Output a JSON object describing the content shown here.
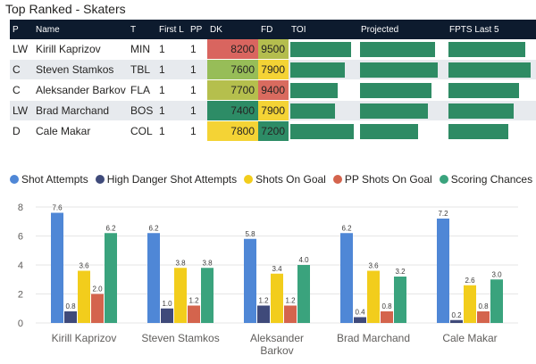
{
  "title": "Top Ranked - Skaters",
  "table": {
    "headers": {
      "pos": "P",
      "name": "Name",
      "team": "T",
      "firstl": "First L",
      "pp": "PP",
      "dk": "DK",
      "fd": "FD",
      "toi": "TOI",
      "projected": "Projected",
      "fpts": "FPTS Last 5"
    },
    "rows": [
      {
        "pos": "LW",
        "name": "Kirill Kaprizov",
        "team": "MIN",
        "firstl": "1",
        "pp": "1",
        "dk": "8200",
        "fd": "9500",
        "dk_color": "#d9655f",
        "fd_color": "#b4bd4e",
        "toi": 0.92,
        "projected": 0.88,
        "fpts": 0.9
      },
      {
        "pos": "C",
        "name": "Steven Stamkos",
        "team": "TBL",
        "firstl": "1",
        "pp": "1",
        "dk": "7600",
        "fd": "7900",
        "dk_color": "#97bd58",
        "fd_color": "#f4d335",
        "toi": 0.82,
        "projected": 0.92,
        "fpts": 0.96
      },
      {
        "pos": "C",
        "name": "Aleksander Barkov",
        "team": "FLA",
        "firstl": "1",
        "pp": "1",
        "dk": "7700",
        "fd": "9400",
        "dk_color": "#b5bf4d",
        "fd_color": "#d96b5f",
        "toi": 0.72,
        "projected": 0.84,
        "fpts": 0.82
      },
      {
        "pos": "LW",
        "name": "Brad Marchand",
        "team": "BOS",
        "firstl": "1",
        "pp": "1",
        "dk": "7400",
        "fd": "7900",
        "dk_color": "#2d8c66",
        "fd_color": "#f4d335",
        "toi": 0.67,
        "projected": 0.8,
        "fpts": 0.76
      },
      {
        "pos": "D",
        "name": "Cale Makar",
        "team": "COL",
        "firstl": "1",
        "pp": "1",
        "dk": "7800",
        "fd": "7200",
        "dk_color": "#f4d335",
        "fd_color": "#2d8c66",
        "toi": 0.96,
        "projected": 0.68,
        "fpts": 0.7
      }
    ]
  },
  "colors": {
    "bar": "#2e8b64"
  },
  "chart_data": {
    "type": "bar",
    "categories": [
      "Kirill Kaprizov",
      "Steven Stamkos",
      "Aleksander Barkov",
      "Brad Marchand",
      "Cale Makar"
    ],
    "category_lines": [
      [
        "Kirill Kaprizov"
      ],
      [
        "Steven Stamkos"
      ],
      [
        "Aleksander",
        "Barkov"
      ],
      [
        "Brad Marchand"
      ],
      [
        "Cale Makar"
      ]
    ],
    "series": [
      {
        "name": "Shot Attempts",
        "color": "#4f87d6",
        "values": [
          7.6,
          6.2,
          5.8,
          6.2,
          7.2
        ]
      },
      {
        "name": "High Danger Shot Attempts",
        "color": "#3f4a7a",
        "values": [
          0.8,
          1.0,
          1.2,
          0.4,
          0.2
        ]
      },
      {
        "name": "Shots On Goal",
        "color": "#f2cd1c",
        "values": [
          3.6,
          3.8,
          3.4,
          3.6,
          2.6
        ]
      },
      {
        "name": "PP Shots On Goal",
        "color": "#d4644d",
        "values": [
          2.0,
          1.2,
          1.2,
          0.8,
          0.8
        ]
      },
      {
        "name": "Scoring Chances",
        "color": "#3aa37d",
        "values": [
          6.2,
          3.8,
          4.0,
          3.2,
          3.0
        ]
      }
    ],
    "value_labels": [
      [
        "7.6",
        "6.2",
        "5.8",
        "6.2",
        "7.2"
      ],
      [
        "0.8",
        "1.0",
        "1.2",
        "0.4",
        "0.2"
      ],
      [
        "3.6",
        "3.8",
        "3.4",
        "3.6",
        "2.6"
      ],
      [
        "2.0",
        "1.2",
        "1.2",
        "0.8",
        "0.8"
      ],
      [
        "6.2",
        "3.8",
        "4.0",
        "3.2",
        "3.0"
      ]
    ],
    "yticks": [
      0,
      2,
      4,
      6,
      8
    ],
    "ylim": [
      0,
      8.4
    ],
    "title": "",
    "xlabel": "",
    "ylabel": ""
  }
}
